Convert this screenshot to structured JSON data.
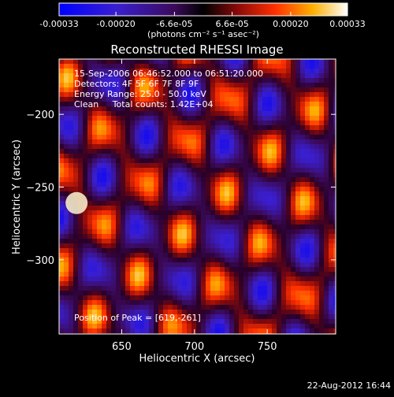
{
  "chart_data": {
    "type": "heatmap",
    "title": "Reconstructed RHESSI Image",
    "xlabel": "Heliocentric X (arcsec)",
    "ylabel": "Heliocentric Y (arcsec)",
    "xlim": [
      607,
      797
    ],
    "ylim": [
      -351,
      -162
    ],
    "x_ticks": [
      650,
      700,
      750
    ],
    "y_ticks": [
      -200,
      -250,
      -300
    ],
    "colorbar": {
      "min": -0.00033,
      "max": 0.00033,
      "ticks": [
        "-0.00033",
        "-0.00020",
        "-6.6e-05",
        "6.6e-05",
        "0.00020",
        "0.00033"
      ],
      "tick_values": [
        -0.00033,
        -0.0002,
        -6.6e-05,
        6.6e-05,
        0.0002,
        0.00033
      ],
      "units_label": "(photons cm⁻² s⁻¹ asec⁻²)",
      "colormap": "blue-black-red-yellow-white"
    },
    "annotations": [
      "15-Sep-2006 06:46:52.000 to 06:51:20.000",
      "Detectors: 4F 5F 6F 7F 8F 9F",
      "Energy Range: 25.0 - 50.0 keV",
      "Clean     Total counts: 1.42E+04"
    ],
    "peak_label": "Position of Peak = [619,-261]",
    "peak": [
      619,
      -261
    ],
    "grid": false
  },
  "footer": {
    "date": "22-Aug-2012 16:44"
  }
}
